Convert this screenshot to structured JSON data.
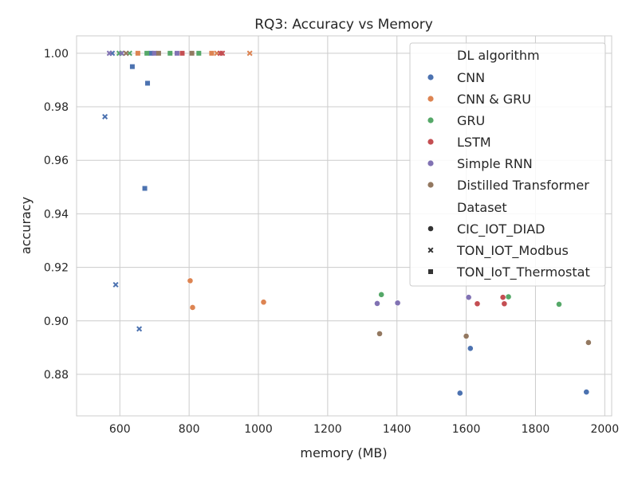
{
  "chart_data": {
    "type": "scatter",
    "title": "RQ3: Accuracy vs Memory",
    "xlabel": "memory (MB)",
    "ylabel": "accuracy",
    "xlim": [
      475,
      2020
    ],
    "ylim": [
      0.8645,
      1.0065
    ],
    "xticks": [
      600,
      800,
      1000,
      1200,
      1400,
      1600,
      1800,
      2000
    ],
    "yticks": [
      0.88,
      0.9,
      0.92,
      0.94,
      0.96,
      0.98,
      1.0
    ],
    "ytick_labels": [
      "0.88",
      "0.90",
      "0.92",
      "0.94",
      "0.96",
      "0.98",
      "1.00"
    ],
    "grid": true,
    "legend": {
      "placement": "top-right",
      "hue_title": "DL algorithm",
      "style_title": "Dataset"
    },
    "algorithms": [
      {
        "name": "CNN",
        "color": "#4c72b0"
      },
      {
        "name": "CNN & GRU",
        "color": "#dd8452"
      },
      {
        "name": "GRU",
        "color": "#55a868"
      },
      {
        "name": "LSTM",
        "color": "#c44e52"
      },
      {
        "name": "Simple RNN",
        "color": "#8172b3"
      },
      {
        "name": "Distilled Transformer",
        "color": "#937860"
      }
    ],
    "datasets": [
      {
        "name": "CIC_IOT_DIAD",
        "marker": "circle"
      },
      {
        "name": "TON_IOT_Modbus",
        "marker": "x"
      },
      {
        "name": "TON_IoT_Thermostat",
        "marker": "square"
      }
    ],
    "points": [
      {
        "x": 1582,
        "y": 0.873,
        "alg": "CNN",
        "ds": "CIC_IOT_DIAD"
      },
      {
        "x": 1612,
        "y": 0.8897,
        "alg": "CNN",
        "ds": "CIC_IOT_DIAD"
      },
      {
        "x": 1947,
        "y": 0.8734,
        "alg": "CNN",
        "ds": "CIC_IOT_DIAD"
      },
      {
        "x": 803,
        "y": 0.915,
        "alg": "CNN & GRU",
        "ds": "CIC_IOT_DIAD"
      },
      {
        "x": 810,
        "y": 0.905,
        "alg": "CNN & GRU",
        "ds": "CIC_IOT_DIAD"
      },
      {
        "x": 1015,
        "y": 0.907,
        "alg": "CNN & GRU",
        "ds": "CIC_IOT_DIAD"
      },
      {
        "x": 1355,
        "y": 0.9098,
        "alg": "GRU",
        "ds": "CIC_IOT_DIAD"
      },
      {
        "x": 1722,
        "y": 0.909,
        "alg": "GRU",
        "ds": "CIC_IOT_DIAD"
      },
      {
        "x": 1868,
        "y": 0.9062,
        "alg": "GRU",
        "ds": "CIC_IOT_DIAD"
      },
      {
        "x": 1632,
        "y": 0.9064,
        "alg": "LSTM",
        "ds": "CIC_IOT_DIAD"
      },
      {
        "x": 1706,
        "y": 0.9088,
        "alg": "LSTM",
        "ds": "CIC_IOT_DIAD"
      },
      {
        "x": 1710,
        "y": 0.9064,
        "alg": "LSTM",
        "ds": "CIC_IOT_DIAD"
      },
      {
        "x": 1343,
        "y": 0.9065,
        "alg": "Simple RNN",
        "ds": "CIC_IOT_DIAD"
      },
      {
        "x": 1402,
        "y": 0.9067,
        "alg": "Simple RNN",
        "ds": "CIC_IOT_DIAD"
      },
      {
        "x": 1607,
        "y": 0.9088,
        "alg": "Simple RNN",
        "ds": "CIC_IOT_DIAD"
      },
      {
        "x": 1350,
        "y": 0.8952,
        "alg": "Distilled Transformer",
        "ds": "CIC_IOT_DIAD"
      },
      {
        "x": 1600,
        "y": 0.8943,
        "alg": "Distilled Transformer",
        "ds": "CIC_IOT_DIAD"
      },
      {
        "x": 1953,
        "y": 0.8919,
        "alg": "Distilled Transformer",
        "ds": "CIC_IOT_DIAD"
      },
      {
        "x": 557,
        "y": 0.9763,
        "alg": "CNN",
        "ds": "TON_IOT_Modbus"
      },
      {
        "x": 588,
        "y": 0.9135,
        "alg": "CNN",
        "ds": "TON_IOT_Modbus"
      },
      {
        "x": 656,
        "y": 0.897,
        "alg": "CNN",
        "ds": "TON_IOT_Modbus"
      },
      {
        "x": 578,
        "y": 1.0,
        "alg": "CNN",
        "ds": "TON_IOT_Modbus"
      },
      {
        "x": 975,
        "y": 1.0,
        "alg": "CNN & GRU",
        "ds": "TON_IOT_Modbus"
      },
      {
        "x": 880,
        "y": 1.0,
        "alg": "CNN & GRU",
        "ds": "TON_IOT_Modbus"
      },
      {
        "x": 598,
        "y": 1.0,
        "alg": "GRU",
        "ds": "TON_IOT_Modbus"
      },
      {
        "x": 628,
        "y": 1.0,
        "alg": "GRU",
        "ds": "TON_IOT_Modbus"
      },
      {
        "x": 890,
        "y": 1.0,
        "alg": "LSTM",
        "ds": "TON_IOT_Modbus"
      },
      {
        "x": 896,
        "y": 1.0,
        "alg": "LSTM",
        "ds": "TON_IOT_Modbus"
      },
      {
        "x": 570,
        "y": 1.0,
        "alg": "Simple RNN",
        "ds": "TON_IOT_Modbus"
      },
      {
        "x": 605,
        "y": 1.0,
        "alg": "Simple RNN",
        "ds": "TON_IOT_Modbus"
      },
      {
        "x": 618,
        "y": 1.0,
        "alg": "Distilled Transformer",
        "ds": "TON_IOT_Modbus"
      },
      {
        "x": 636,
        "y": 0.995,
        "alg": "CNN",
        "ds": "TON_IoT_Thermostat"
      },
      {
        "x": 680,
        "y": 0.9888,
        "alg": "CNN",
        "ds": "TON_IoT_Thermostat"
      },
      {
        "x": 672,
        "y": 0.9495,
        "alg": "CNN",
        "ds": "TON_IoT_Thermostat"
      },
      {
        "x": 690,
        "y": 1.0,
        "alg": "CNN",
        "ds": "TON_IoT_Thermostat"
      },
      {
        "x": 652,
        "y": 1.0,
        "alg": "CNN & GRU",
        "ds": "TON_IoT_Thermostat"
      },
      {
        "x": 865,
        "y": 1.0,
        "alg": "CNN & GRU",
        "ds": "TON_IoT_Thermostat"
      },
      {
        "x": 678,
        "y": 1.0,
        "alg": "GRU",
        "ds": "TON_IoT_Thermostat"
      },
      {
        "x": 745,
        "y": 1.0,
        "alg": "GRU",
        "ds": "TON_IoT_Thermostat"
      },
      {
        "x": 828,
        "y": 1.0,
        "alg": "GRU",
        "ds": "TON_IoT_Thermostat"
      },
      {
        "x": 780,
        "y": 1.0,
        "alg": "LSTM",
        "ds": "TON_IoT_Thermostat"
      },
      {
        "x": 700,
        "y": 1.0,
        "alg": "Simple RNN",
        "ds": "TON_IoT_Thermostat"
      },
      {
        "x": 765,
        "y": 1.0,
        "alg": "Simple RNN",
        "ds": "TON_IoT_Thermostat"
      },
      {
        "x": 712,
        "y": 1.0,
        "alg": "Distilled Transformer",
        "ds": "TON_IoT_Thermostat"
      },
      {
        "x": 808,
        "y": 1.0,
        "alg": "Distilled Transformer",
        "ds": "TON_IoT_Thermostat"
      }
    ]
  }
}
